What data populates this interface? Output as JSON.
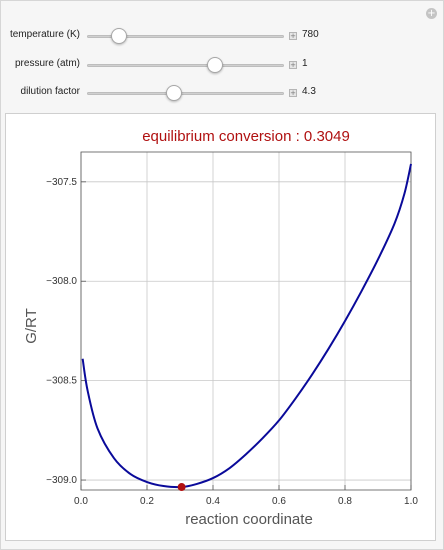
{
  "controls": [
    {
      "label": "temperature (K)",
      "value": "780",
      "fraction": 0.16
    },
    {
      "label": "pressure (atm)",
      "value": "1",
      "fraction": 0.65
    },
    {
      "label": "dilution factor",
      "value": "4.3",
      "fraction": 0.44
    }
  ],
  "colors": {
    "curve": "#0a0a9a",
    "point": "#b01010",
    "title": "#b01010"
  },
  "chart_data": {
    "type": "line",
    "title": "equilibrium conversion : 0.3049",
    "xlabel": "reaction coordinate",
    "ylabel": "G/RT",
    "xlim": [
      0,
      1
    ],
    "ylim": [
      -309.05,
      -307.35
    ],
    "xticks": [
      "0.0",
      "0.2",
      "0.4",
      "0.6",
      "0.8",
      "1.0"
    ],
    "yticks": [
      "-307.5",
      "-308.0",
      "-308.5",
      "-309.0"
    ],
    "ytick_values": [
      -307.5,
      -308.0,
      -308.5,
      -309.0
    ],
    "grid": true,
    "series": [
      {
        "x": [
          0.005,
          0.02,
          0.05,
          0.1,
          0.15,
          0.2,
          0.25,
          0.3049,
          0.35,
          0.4,
          0.45,
          0.5,
          0.55,
          0.6,
          0.65,
          0.7,
          0.75,
          0.8,
          0.85,
          0.9,
          0.95,
          0.98,
          1.0
        ],
        "y": [
          -308.39,
          -308.55,
          -308.74,
          -308.89,
          -308.97,
          -309.01,
          -309.03,
          -309.035,
          -309.02,
          -308.99,
          -308.94,
          -308.87,
          -308.79,
          -308.7,
          -308.59,
          -308.47,
          -308.34,
          -308.2,
          -308.05,
          -307.89,
          -307.71,
          -307.56,
          -307.41
        ]
      }
    ],
    "marker": {
      "x": 0.3049,
      "y": -309.035
    }
  }
}
